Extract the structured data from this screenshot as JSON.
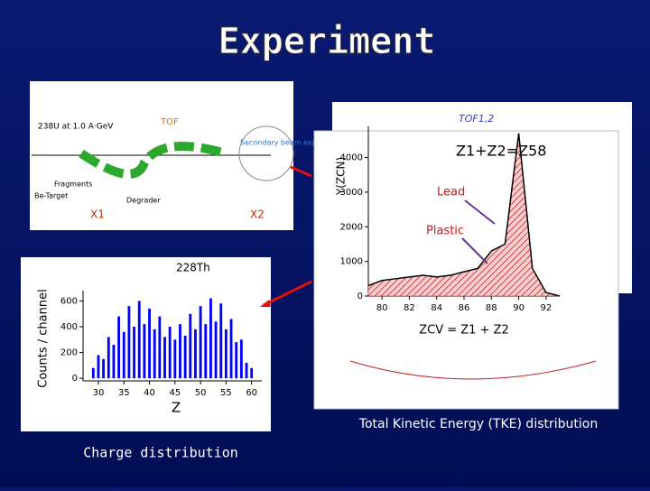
{
  "title": "Experiment",
  "captions": {
    "tke": "Total Kinetic Energy (TKE) distribution",
    "charge": "Charge distribution"
  },
  "diagram": {
    "beam": "238U at 1.0 A·GeV",
    "tof": "TOF",
    "secondary": "Secondary beam experiment",
    "fragments": "Fragments",
    "target": "Be-Target",
    "degrader": "Degrader",
    "x1": "X1",
    "x2": "X2"
  },
  "chart_data": [
    {
      "type": "bar",
      "annotation": "228Th",
      "x_label": "Z",
      "y_label": "Counts / channel",
      "color": "#0000ff",
      "x": [
        29,
        30,
        31,
        32,
        33,
        34,
        35,
        36,
        37,
        38,
        39,
        40,
        41,
        42,
        43,
        44,
        45,
        46,
        47,
        48,
        49,
        50,
        51,
        52,
        53,
        54,
        55,
        56,
        57,
        58,
        59,
        60
      ],
      "values": [
        80,
        180,
        150,
        320,
        260,
        480,
        360,
        560,
        400,
        600,
        420,
        540,
        380,
        480,
        320,
        400,
        300,
        420,
        330,
        500,
        380,
        560,
        420,
        620,
        440,
        580,
        380,
        460,
        280,
        300,
        120,
        80
      ],
      "xlim": [
        27,
        62
      ],
      "xticks": [
        30,
        35,
        40,
        45,
        50,
        55,
        60
      ],
      "ylim": [
        -20,
        680
      ],
      "yticks": [
        0,
        200,
        400,
        600
      ]
    },
    {
      "type": "line",
      "annotations": {
        "top": "TOF1,2",
        "sum": "Z1+Z2=Z58",
        "lead": "Lead",
        "plastic": "Plastic"
      },
      "x_label": "ZCV = Z1 + Z2",
      "y_label": "Y(ZCN)",
      "color": "#000000",
      "fill": "#d01010",
      "x": [
        79,
        80,
        81,
        82,
        83,
        84,
        85,
        86,
        87,
        88,
        89,
        90,
        91,
        92,
        93
      ],
      "values": [
        300,
        450,
        500,
        550,
        600,
        550,
        600,
        700,
        800,
        1300,
        1500,
        4700,
        800,
        100,
        0
      ],
      "xlim": [
        79,
        93
      ],
      "xticks": [
        80,
        82,
        84,
        86,
        88,
        90,
        92
      ],
      "ylim": [
        0,
        4900
      ],
      "yticks": [
        0,
        1000,
        2000,
        3000,
        4000
      ]
    }
  ]
}
